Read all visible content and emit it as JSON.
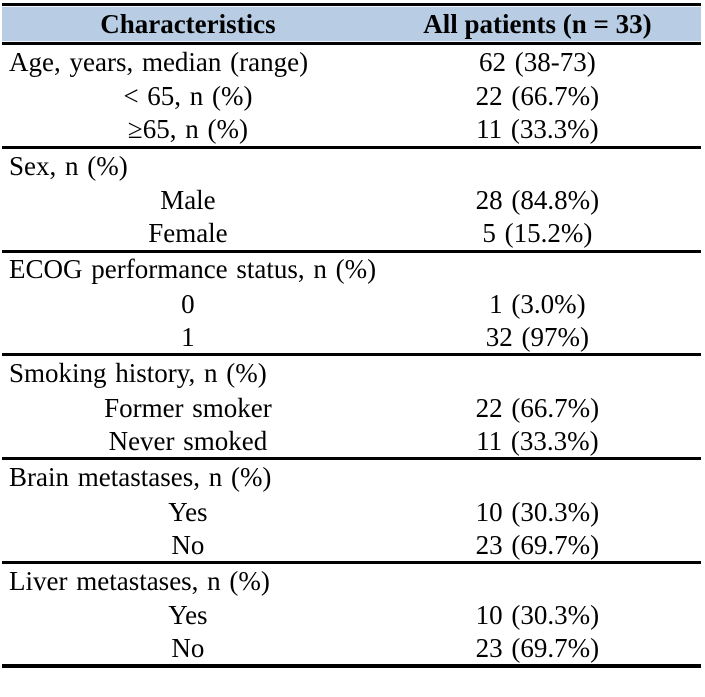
{
  "table": {
    "title_semantic": "Patient baseline characteristics table",
    "colors": {
      "header_bg": "#b8cce4",
      "border": "#000000",
      "text": "#000000",
      "page_bg": "#ffffff"
    },
    "header": {
      "characteristics": "Characteristics",
      "all_patients": "All patients (n = 33)"
    },
    "rows": [
      {
        "label": "Age, years, median (range)",
        "value": "62 (38-73)"
      },
      {
        "label": "< 65, n (%)",
        "value": "22 (66.7%)"
      },
      {
        "label": "≥65, n (%)",
        "value": "11 (33.3%)"
      },
      {
        "label": "Sex, n (%)",
        "value": ""
      },
      {
        "label": "Male",
        "value": "28 (84.8%)"
      },
      {
        "label": "Female",
        "value": "5 (15.2%)"
      },
      {
        "label": "ECOG performance status, n (%)",
        "value": ""
      },
      {
        "label": "0",
        "value": "1 (3.0%)"
      },
      {
        "label": "1",
        "value": "32 (97%)"
      },
      {
        "label": "Smoking history, n (%)",
        "value": ""
      },
      {
        "label": "Former smoker",
        "value": "22 (66.7%)"
      },
      {
        "label": "Never smoked",
        "value": "11 (33.3%)"
      },
      {
        "label": "Brain metastases, n (%)",
        "value": ""
      },
      {
        "label": "Yes",
        "value": "10 (30.3%)"
      },
      {
        "label": "No",
        "value": "23 (69.7%)"
      },
      {
        "label": "Liver metastases, n (%)",
        "value": ""
      },
      {
        "label": "Yes",
        "value": "10 (30.3%)"
      },
      {
        "label": "No",
        "value": "23 (69.7%)"
      }
    ]
  }
}
